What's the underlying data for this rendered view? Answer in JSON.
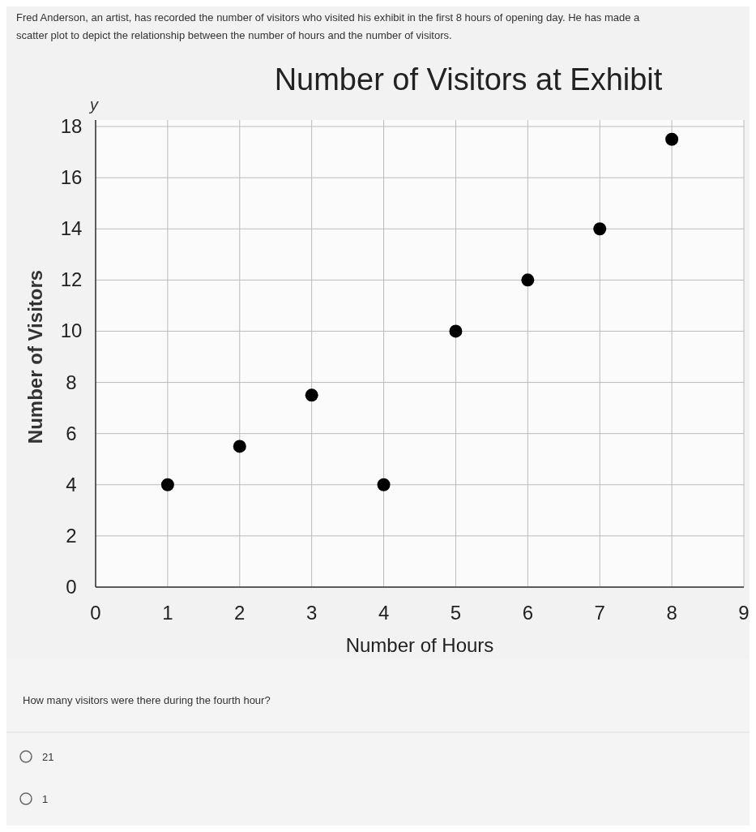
{
  "chart_data": {
    "type": "scatter",
    "title": "Number of Visitors at Exhibit",
    "xlabel": "Number of Hours",
    "ylabel": "Number of Visitors",
    "x": [
      1,
      2,
      3,
      4,
      5,
      6,
      7,
      8
    ],
    "values": [
      4,
      5.5,
      7.5,
      4,
      10,
      12,
      14,
      17.5
    ],
    "color": "#000000",
    "marker": "circle",
    "grid": true,
    "xlim": [
      0,
      9
    ],
    "xticks": [
      0,
      1,
      2,
      3,
      4,
      5,
      6,
      7,
      8,
      9
    ],
    "ylim": [
      0,
      18
    ],
    "yticks": [
      0,
      2,
      4,
      6,
      8,
      10,
      12,
      14,
      16,
      18
    ],
    "annotations": [
      "Fred Anderson, an artist, has recorded the number of visitors who visited his exhibit in the first 8 hours of opening day. He has made a scatter plot to depict the relationship between the number of hours and the number of visitors.",
      "y",
      "How many visitors were there during the fourth hour?",
      "21",
      "1"
    ]
  }
}
